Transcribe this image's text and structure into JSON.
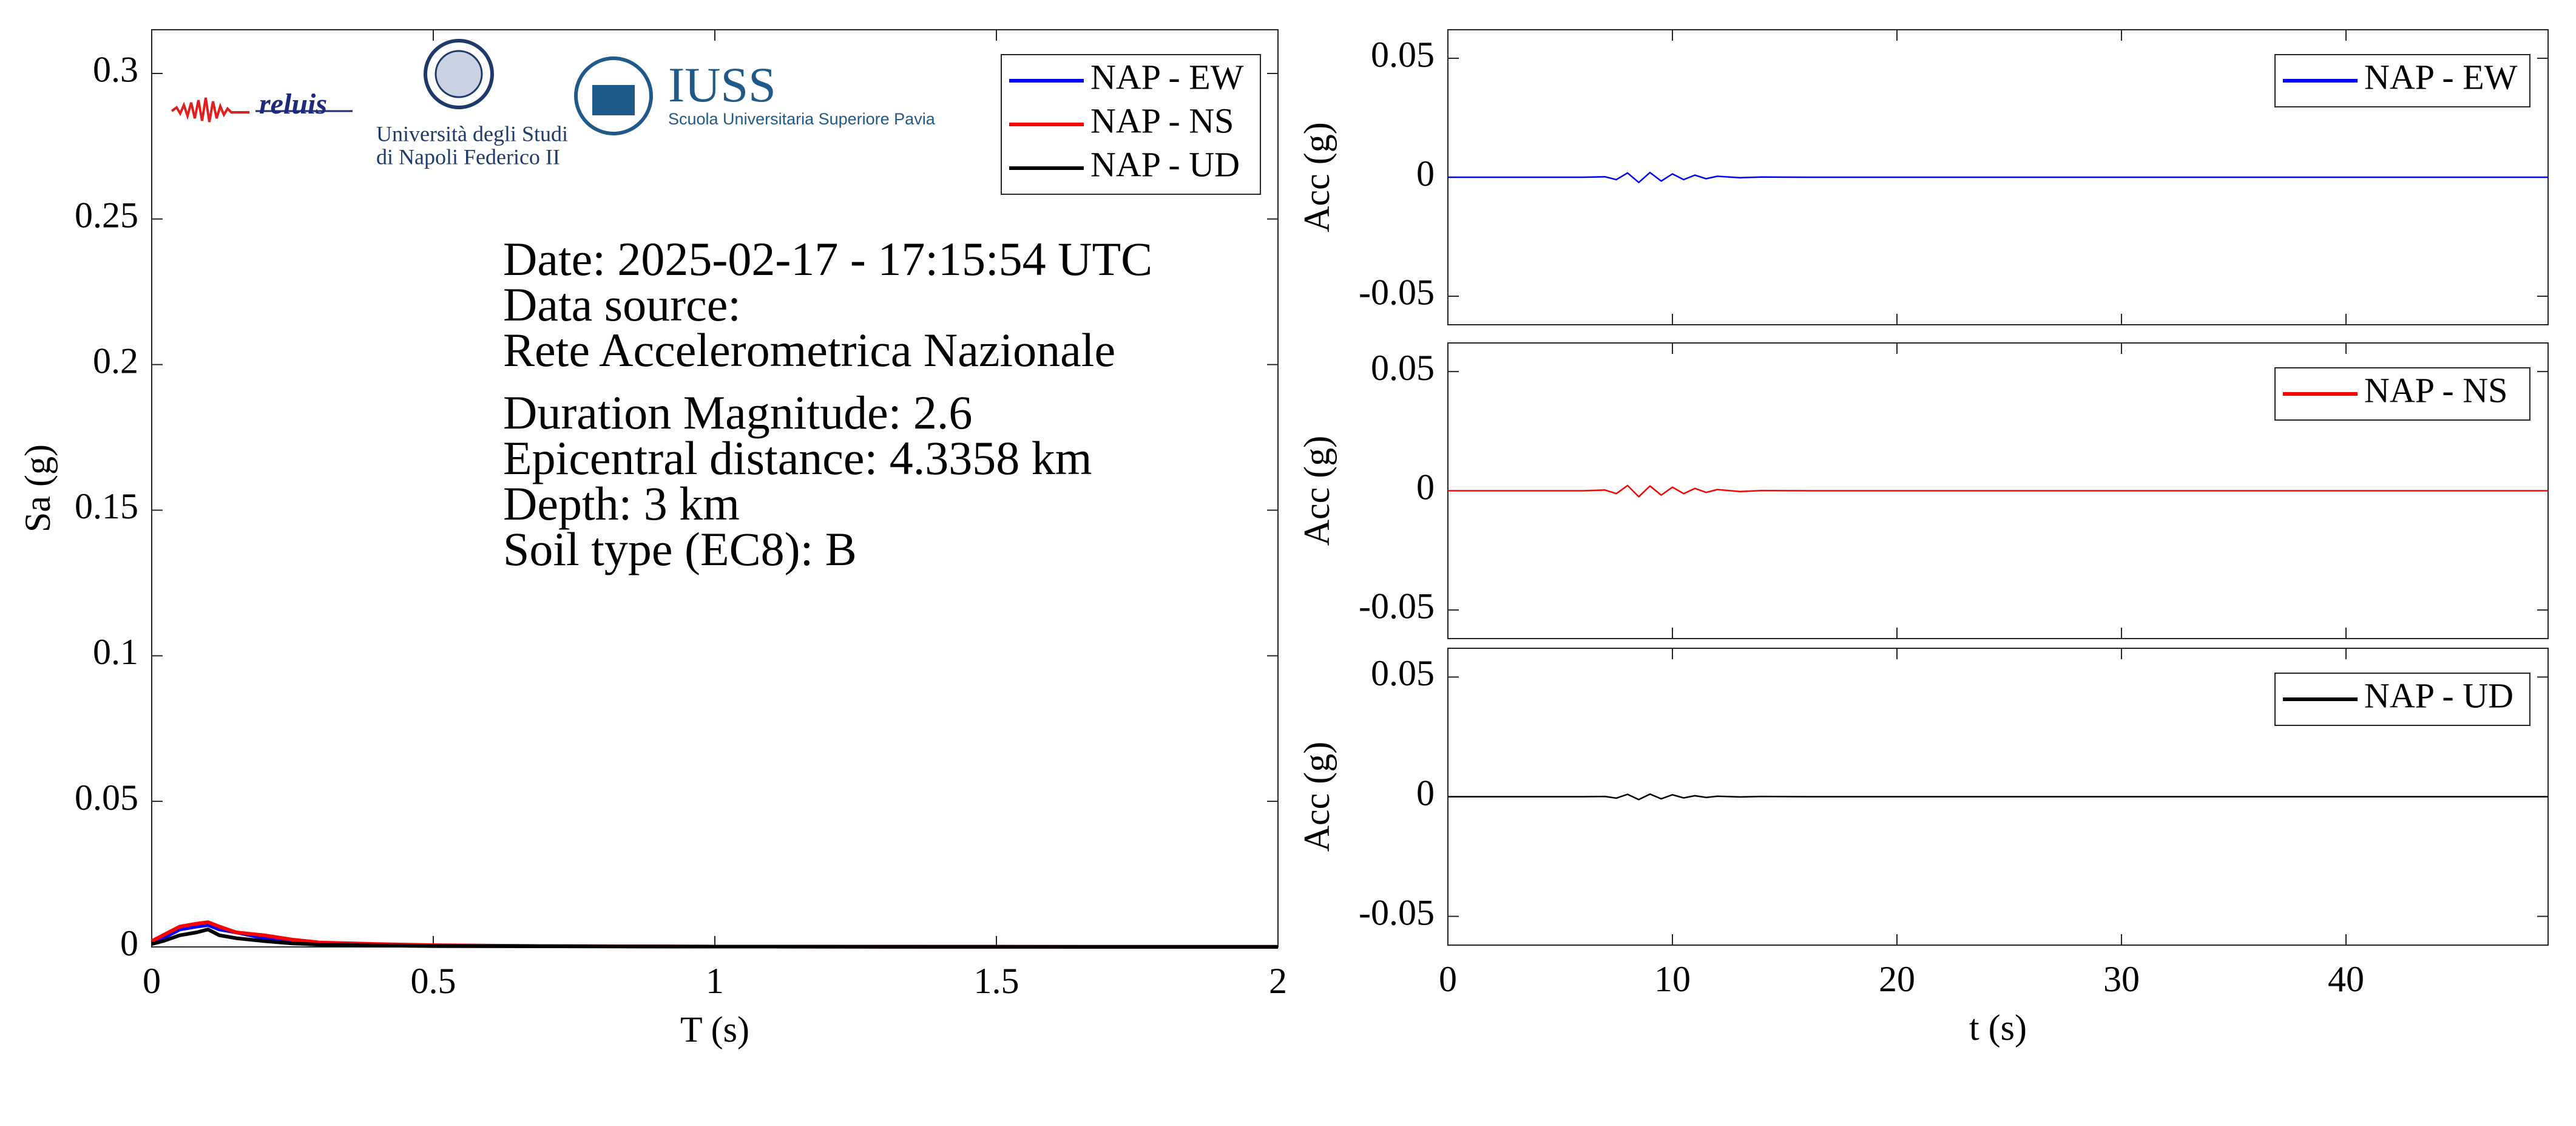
{
  "chart_data": [
    {
      "type": "line",
      "xlabel": "T (s)",
      "ylabel": "Sa (g)",
      "logos": [
        "reluis",
        "Università degli Studi",
        "di Napoli Federico II",
        "IUSS",
        "Scuola Universitaria Superiore Pavia"
      ],
      "annotations": [
        "Date: 2025-02-17 - 17:15:54 UTC",
        "Data source:",
        "Rete Accelerometrica Nazionale",
        "Duration Magnitude: 2.6",
        "Epicentral distance: 4.3358 km",
        "Depth: 3 km",
        "Soil type (EC8): B"
      ],
      "x": [
        0,
        0.02,
        0.05,
        0.08,
        0.1,
        0.12,
        0.15,
        0.2,
        0.25,
        0.3,
        0.4,
        0.5,
        0.7,
        1,
        1.5,
        2
      ],
      "series": [
        {
          "name": "NAP - EW",
          "color": "#0000ff",
          "values": [
            0.002,
            0.003,
            0.006,
            0.007,
            0.0075,
            0.006,
            0.005,
            0.003,
            0.002,
            0.0012,
            0.0008,
            0.0005,
            0.0003,
            0.0001,
            5e-05,
            3e-05
          ]
        },
        {
          "name": "NAP - NS",
          "color": "#ff0000",
          "values": [
            0.002,
            0.004,
            0.007,
            0.008,
            0.0085,
            0.007,
            0.005,
            0.004,
            0.0025,
            0.0015,
            0.001,
            0.0006,
            0.0003,
            0.0001,
            5e-05,
            3e-05
          ]
        },
        {
          "name": "NAP - UD",
          "color": "#000000",
          "values": [
            0.001,
            0.002,
            0.004,
            0.005,
            0.006,
            0.004,
            0.003,
            0.002,
            0.0012,
            0.0008,
            0.0005,
            0.0003,
            0.0002,
            0.0001,
            4e-05,
            2e-05
          ]
        }
      ],
      "xlim": [
        0,
        2
      ],
      "xticks": [
        0,
        0.5,
        1,
        1.5,
        2
      ],
      "ylim": [
        0,
        0.315
      ],
      "yticks": [
        0,
        0.05,
        0.1,
        0.15,
        0.2,
        0.25,
        0.3
      ],
      "legend": "upper right"
    },
    {
      "type": "line",
      "ylabel": "Acc (g)",
      "xticklabels": false,
      "x": [
        0,
        2,
        4,
        6,
        7,
        7.5,
        8,
        8.5,
        9,
        9.5,
        10,
        10.5,
        11,
        11.5,
        12,
        13,
        14,
        16,
        20,
        25,
        30,
        35,
        40,
        45,
        49
      ],
      "series": [
        {
          "name": "NAP - EW",
          "color": "#0000ff",
          "values": [
            0,
            0,
            0,
            0,
            0.0002,
            -0.001,
            0.0018,
            -0.0022,
            0.002,
            -0.0016,
            0.0014,
            -0.001,
            0.0009,
            -0.0006,
            0.0004,
            -0.0002,
            0.0001,
            0,
            0,
            0,
            0,
            0,
            0,
            0,
            0
          ]
        }
      ],
      "xlim": [
        0,
        49
      ],
      "xticks": [
        0,
        10,
        20,
        30,
        40
      ],
      "ylim": [
        -0.062,
        0.062
      ],
      "yticks": [
        -0.05,
        0,
        0.05
      ],
      "legend": "upper right"
    },
    {
      "type": "line",
      "ylabel": "Acc (g)",
      "xticklabels": false,
      "x": [
        0,
        2,
        4,
        6,
        7,
        7.5,
        8,
        8.5,
        9,
        9.5,
        10,
        10.5,
        11,
        11.5,
        12,
        13,
        14,
        16,
        20,
        25,
        30,
        35,
        40,
        45,
        49
      ],
      "series": [
        {
          "name": "NAP - NS",
          "color": "#ff0000",
          "values": [
            0,
            0,
            0,
            0,
            0.0003,
            -0.0012,
            0.0022,
            -0.0025,
            0.002,
            -0.0018,
            0.0015,
            -0.0012,
            0.001,
            -0.0007,
            0.0005,
            -0.0003,
            0.0001,
            0,
            0,
            0,
            0,
            0,
            0,
            0,
            0
          ]
        }
      ],
      "xlim": [
        0,
        49
      ],
      "xticks": [
        0,
        10,
        20,
        30,
        40
      ],
      "ylim": [
        -0.062,
        0.062
      ],
      "yticks": [
        -0.05,
        0,
        0.05
      ],
      "legend": "upper right"
    },
    {
      "type": "line",
      "xlabel": "t (s)",
      "ylabel": "Acc (g)",
      "x": [
        0,
        2,
        4,
        6,
        7,
        7.5,
        8,
        8.5,
        9,
        9.5,
        10,
        10.5,
        11,
        11.5,
        12,
        13,
        14,
        16,
        20,
        25,
        30,
        35,
        40,
        45,
        49
      ],
      "series": [
        {
          "name": "NAP - UD",
          "color": "#000000",
          "values": [
            0,
            0,
            0,
            0,
            0.0001,
            -0.0006,
            0.001,
            -0.0012,
            0.0011,
            -0.0009,
            0.0008,
            -0.0005,
            0.0004,
            -0.0003,
            0.0002,
            -0.0001,
            0.0001,
            0,
            0,
            0,
            0,
            0,
            0,
            0,
            0
          ]
        }
      ],
      "xlim": [
        0,
        49
      ],
      "xticks": [
        0,
        10,
        20,
        30,
        40
      ],
      "ylim": [
        -0.062,
        0.062
      ],
      "yticks": [
        -0.05,
        0,
        0.05
      ],
      "legend": "upper right"
    }
  ]
}
